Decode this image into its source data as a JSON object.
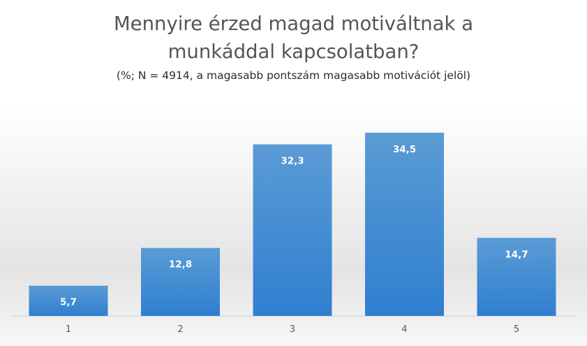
{
  "chart_data": {
    "type": "bar",
    "title_lines": [
      "Mennyire érzed magad motiváltnak a",
      "munkáddal kapcsolatban?"
    ],
    "subtitle": "(%; N = 4914, a magasabb pontszám magasabb motivációt jelöl)",
    "categories": [
      "1",
      "2",
      "3",
      "4",
      "5"
    ],
    "values": [
      5.7,
      12.8,
      32.3,
      34.5,
      14.7
    ],
    "data_labels": [
      "5,7",
      "12,8",
      "32,3",
      "34,5",
      "14,7"
    ],
    "xlabel": "",
    "ylabel": "",
    "ylim": [
      0,
      40
    ],
    "grid": false,
    "legend": "none",
    "bar_color_top": "#5b9bd5",
    "bar_color_bottom": "#2f7fcf"
  }
}
